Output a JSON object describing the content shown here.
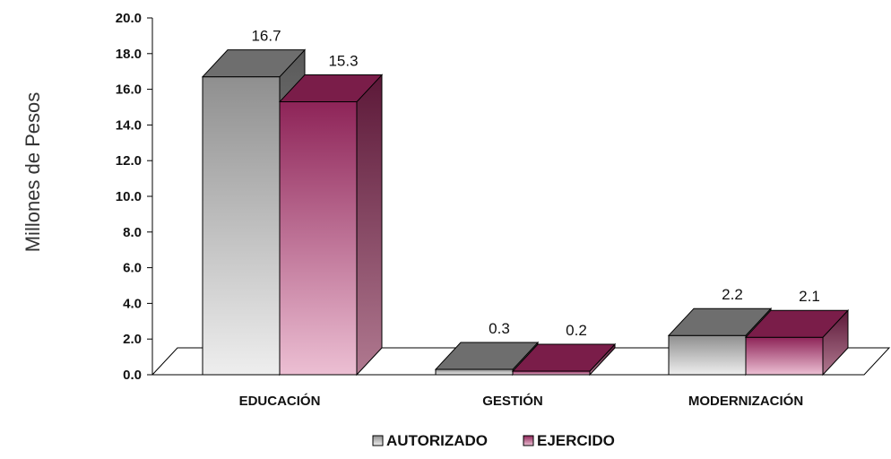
{
  "chart_data": {
    "type": "bar",
    "ylabel": "Millones de Pesos",
    "xlabel": "",
    "title": "",
    "ylim": [
      0,
      20
    ],
    "yticks": [
      "0.0",
      "2.0",
      "4.0",
      "6.0",
      "8.0",
      "10.0",
      "12.0",
      "14.0",
      "16.0",
      "18.0",
      "20.0"
    ],
    "categories": [
      "EDUCACIÓN",
      "GESTIÓN",
      "MODERNIZACIÓN"
    ],
    "series": [
      {
        "name": "AUTORIZADO",
        "values": [
          16.7,
          0.3,
          2.2
        ],
        "labels": [
          "16.7",
          "0.3",
          "2.2"
        ],
        "color": "#9a9a9a"
      },
      {
        "name": "EJERCIDO",
        "values": [
          15.3,
          0.2,
          2.1
        ],
        "labels": [
          "15.3",
          "0.2",
          "2.1"
        ],
        "color": "#8e2458"
      }
    ],
    "legend_position": "bottom-center",
    "grid": false,
    "style": "3d-column"
  }
}
